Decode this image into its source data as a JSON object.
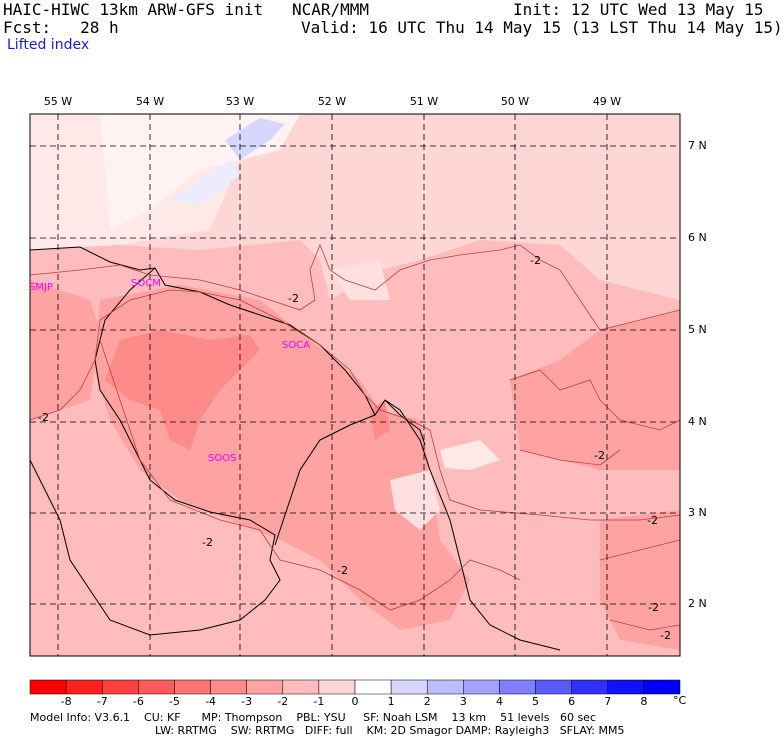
{
  "header": {
    "title_left": "HAIC-HIWC 13km ARW-GFS init   NCAR/MMM",
    "init": "Init: 12 UTC Wed 13 May 15",
    "fcst": "Fcst:   28 h",
    "valid": "Valid: 16 UTC Thu 14 May 15 (13 LST Thu 14 May 15)",
    "field": "Lifted index"
  },
  "axes": {
    "lon_labels": [
      "55 W",
      "54 W",
      "53 W",
      "52 W",
      "51 W",
      "50 W",
      "49 W"
    ],
    "lat_labels": [
      "7 N",
      "6 N",
      "5 N",
      "4 N",
      "3 N",
      "2 N"
    ]
  },
  "stations": [
    "SMJP",
    "SOCM",
    "SOCA",
    "SOOS"
  ],
  "contour_labels": [
    "-2",
    "-2",
    "-2",
    "-2",
    "-2",
    "-2",
    "-2",
    "-2",
    "-2"
  ],
  "colorbar": {
    "ticks": [
      "-8",
      "-7",
      "-6",
      "-5",
      "-4",
      "-3",
      "-2",
      "-1",
      "0",
      "1",
      "2",
      "3",
      "4",
      "5",
      "6",
      "7",
      "8"
    ],
    "unit": "°C",
    "colors": [
      "#ff0000",
      "#ff2020",
      "#ff4040",
      "#ff5a5a",
      "#ff7272",
      "#ff8a8a",
      "#ffa2a2",
      "#ffbcbc",
      "#ffd6d6",
      "#ffffff",
      "#d6d6ff",
      "#bcbcff",
      "#a2a2ff",
      "#8080ff",
      "#5a5aff",
      "#3030ff",
      "#1010ff",
      "#0000ff"
    ]
  },
  "model_info": {
    "line1": "Model Info: V3.6.1    CU: KF      MP: Thompson    PBL: YSU     SF: Noah LSM    13 km    51 levels   60 sec",
    "line2": "LW: RRTMG    SW: RRTMG   DIFF: full    KM: 2D Smagor DAMP: Rayleigh3   SFLAY: MM5"
  }
}
